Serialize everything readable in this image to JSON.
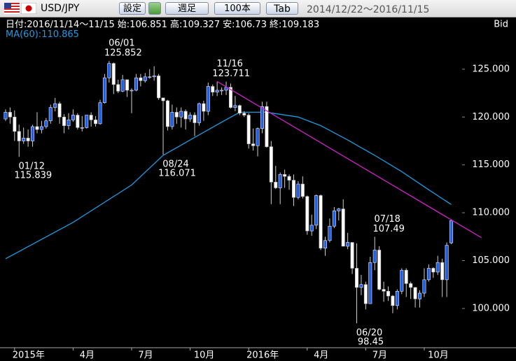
{
  "toolbar": {
    "pair": "USD/JPY",
    "buttons": [
      "設定",
      "週足",
      "100本",
      "Tab"
    ],
    "range": "2014/12/22～2016/11/15"
  },
  "chart_data": {
    "type": "candlestick",
    "info": {
      "date": "日付:2016/11/14～11/15",
      "open_label": "始:",
      "high_label": "高:",
      "low_label": "安:",
      "close_label": "終:",
      "ma_label": "MA(60):",
      "side": "Bid"
    },
    "open": [
      119.8,
      120.5,
      120.0,
      118.5,
      117.5,
      117.8,
      117.5,
      119.0,
      118.7,
      119.0,
      119.6,
      121.0,
      121.4,
      120.0,
      119.1,
      119.7,
      120.2,
      118.9,
      118.9,
      120.2,
      119.7,
      119.3,
      121.5,
      124.1,
      125.6,
      123.4,
      122.7,
      123.9,
      122.8,
      122.8,
      124.1,
      123.8,
      124.2,
      124.2,
      124.3,
      122.0,
      121.7,
      119.0,
      120.5,
      120.0,
      120.6,
      119.8,
      120.2,
      119.4,
      121.4,
      120.6,
      123.2,
      122.6,
      122.8,
      122.8,
      123.1,
      121.0,
      121.2,
      120.4,
      120.2,
      117.2,
      117.0,
      118.8,
      121.1,
      116.9,
      113.2,
      112.6,
      114.0,
      113.8,
      113.4,
      111.6,
      113.0,
      111.7,
      108.1,
      108.7,
      111.8,
      106.3,
      107.1,
      108.6,
      110.2,
      110.4,
      106.5,
      106.9,
      104.2,
      102.2,
      102.5,
      100.5,
      104.8,
      106.1,
      102.0,
      101.8,
      101.3,
      100.3,
      101.8,
      104.0,
      102.6,
      102.2,
      101.0,
      101.6,
      103.0,
      104.2,
      103.8,
      104.8,
      103.0,
      106.851
    ],
    "high": [
      120.8,
      121.0,
      120.7,
      119.2,
      118.9,
      118.7,
      119.2,
      120.5,
      119.6,
      119.9,
      121.3,
      122.0,
      121.6,
      120.3,
      120.4,
      120.8,
      120.4,
      120.1,
      120.1,
      120.5,
      120.1,
      121.8,
      124.5,
      125.852,
      125.7,
      123.9,
      124.4,
      123.9,
      123.0,
      124.5,
      124.5,
      124.6,
      125.0,
      125.3,
      124.5,
      122.0,
      121.8,
      121.3,
      121.0,
      121.0,
      120.8,
      120.5,
      120.5,
      121.5,
      121.7,
      123.6,
      123.4,
      123.711,
      123.1,
      123.7,
      123.5,
      122.2,
      121.3,
      120.6,
      120.4,
      118.8,
      118.9,
      121.6,
      121.6,
      117.5,
      114.9,
      114.2,
      114.5,
      114.0,
      114.0,
      113.3,
      113.8,
      111.8,
      109.8,
      111.9,
      111.9,
      107.5,
      109.4,
      110.6,
      110.5,
      111.4,
      107.9,
      106.9,
      106.8,
      103.5,
      102.8,
      105.4,
      107.49,
      106.5,
      102.8,
      102.3,
      101.4,
      102.0,
      104.2,
      104.2,
      102.8,
      102.2,
      101.9,
      104.2,
      104.6,
      104.3,
      105.5,
      105.2,
      106.9,
      109.327
    ],
    "low": [
      119.6,
      119.3,
      117.5,
      115.839,
      117.2,
      116.9,
      116.9,
      118.3,
      118.3,
      118.8,
      119.3,
      120.6,
      119.3,
      118.3,
      118.7,
      119.5,
      118.7,
      118.5,
      118.8,
      119.0,
      119.0,
      119.2,
      121.4,
      123.6,
      122.4,
      122.5,
      122.6,
      122.1,
      120.4,
      122.7,
      123.2,
      123.6,
      124.0,
      123.8,
      121.8,
      116.071,
      118.6,
      118.7,
      119.3,
      118.9,
      118.7,
      119.5,
      118.0,
      119.1,
      119.6,
      120.2,
      122.2,
      122.2,
      122.3,
      122.3,
      120.9,
      120.6,
      120.2,
      120.0,
      116.7,
      116.5,
      115.9,
      118.3,
      116.8,
      110.9,
      112.5,
      110.9,
      112.6,
      112.4,
      110.7,
      111.4,
      111.5,
      107.7,
      107.6,
      108.3,
      106.1,
      105.5,
      106.9,
      108.4,
      109.2,
      106.5,
      106.2,
      103.6,
      98.45,
      101.4,
      99.9,
      100.5,
      104.0,
      101.9,
      100.7,
      100.8,
      99.5,
      99.9,
      101.5,
      101.2,
      101.0,
      100.1,
      100.1,
      101.2,
      102.8,
      103.2,
      103.5,
      101.2,
      101.2,
      106.73
    ],
    "close": [
      120.5,
      120.0,
      118.5,
      117.5,
      117.8,
      117.5,
      119.0,
      118.7,
      119.0,
      119.6,
      121.0,
      121.4,
      120.0,
      119.1,
      119.7,
      120.2,
      118.9,
      118.9,
      120.2,
      119.7,
      119.3,
      121.5,
      124.1,
      125.6,
      123.4,
      122.7,
      123.9,
      122.8,
      122.8,
      124.1,
      123.8,
      124.2,
      124.2,
      124.3,
      122.0,
      121.7,
      119.0,
      120.5,
      120.0,
      120.6,
      119.8,
      120.2,
      119.4,
      121.4,
      120.6,
      123.2,
      122.6,
      122.8,
      122.8,
      123.1,
      121.0,
      121.2,
      120.4,
      120.2,
      117.2,
      117.0,
      118.8,
      121.1,
      116.9,
      113.2,
      112.6,
      114.0,
      113.8,
      113.4,
      111.6,
      113.0,
      111.7,
      108.1,
      108.7,
      111.8,
      106.3,
      107.1,
      108.6,
      110.2,
      110.4,
      106.5,
      106.9,
      104.2,
      102.2,
      102.5,
      100.5,
      104.8,
      106.1,
      102.0,
      101.8,
      101.3,
      100.3,
      101.8,
      104.0,
      102.6,
      102.2,
      101.0,
      101.6,
      103.0,
      104.2,
      103.8,
      104.8,
      103.0,
      106.6,
      109.183
    ],
    "up_color": "#1f5fe0",
    "down_color": "#ffffff",
    "wick_color": "#cfcfcf",
    "ma": {
      "x": [
        0,
        15,
        28,
        35,
        41,
        47,
        52,
        58,
        65,
        70,
        76,
        82,
        88,
        94,
        99
      ],
      "values": [
        105.2,
        109.0,
        112.9,
        116.0,
        117.6,
        119.2,
        120.5,
        120.5,
        120.0,
        119.1,
        117.6,
        116.0,
        114.3,
        112.4,
        110.865
      ],
      "color": "#1e9be0"
    },
    "trendline": {
      "x": [
        47,
        105.7
      ],
      "values": [
        123.711,
        107.4
      ],
      "color": "#d020c8"
    },
    "annotations": [
      {
        "date": "01/12",
        "x": 3,
        "kind": "low"
      },
      {
        "date": "06/01",
        "x": 23,
        "kind": "high"
      },
      {
        "date": "08/24",
        "x": 35,
        "kind": "low"
      },
      {
        "date": "11/16",
        "x": 47,
        "kind": "high"
      },
      {
        "date": "06/20",
        "x": 78,
        "kind": "low"
      },
      {
        "date": "07/18",
        "x": 82,
        "kind": "high"
      }
    ],
    "xlim": [
      -1.24,
      113.38
    ],
    "xticks": [
      {
        "value": 2,
        "label": "2015年"
      },
      {
        "value": 15,
        "label": "4月"
      },
      {
        "value": 28,
        "label": "7月"
      },
      {
        "value": 41,
        "label": "10月"
      },
      {
        "value": 54,
        "label": "2016年"
      },
      {
        "value": 67,
        "label": "4月"
      },
      {
        "value": 80,
        "label": "7月"
      },
      {
        "value": 93,
        "label": "10月"
      }
    ],
    "ylim": [
      95.9,
      130.4
    ],
    "yticks": [
      {
        "value": 100,
        "label": "100.000"
      },
      {
        "value": 105,
        "label": "105.000"
      },
      {
        "value": 110,
        "label": "110.000"
      },
      {
        "value": 115,
        "label": "115.000"
      },
      {
        "value": 120,
        "label": "120.000"
      },
      {
        "value": 125,
        "label": "125.000"
      }
    ]
  }
}
